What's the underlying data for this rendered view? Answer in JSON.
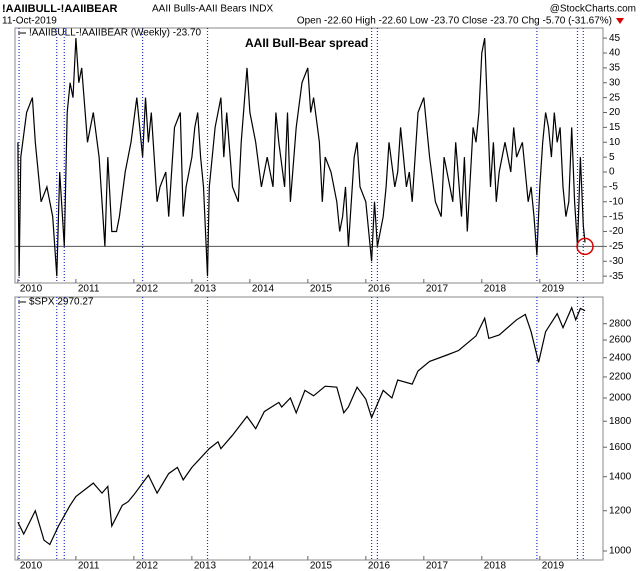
{
  "header": {
    "symbol": "!AAIIBULL-!AAIIBEAR",
    "description": "AAII Bulls-AAII Bears INDX",
    "date": "11-Oct-2019",
    "quote": "Open -22.60  High -22.60  Low -23.70  Close -23.70  Chg -5.70 (-31.67%)",
    "source": "@StockCharts.com"
  },
  "chart_data": [
    {
      "type": "line",
      "annotation": "AAII Bull-Bear spread",
      "x": [
        2010.0,
        2010.02,
        2010.05,
        2010.15,
        2010.25,
        2010.3,
        2010.4,
        2010.5,
        2010.6,
        2010.67,
        2010.72,
        2010.8,
        2010.85,
        2010.9,
        2010.95,
        2011.0,
        2011.05,
        2011.1,
        2011.2,
        2011.3,
        2011.4,
        2011.45,
        2011.5,
        2011.55,
        2011.62,
        2011.7,
        2011.75,
        2011.85,
        2011.95,
        2012.05,
        2012.15,
        2012.2,
        2012.25,
        2012.3,
        2012.4,
        2012.45,
        2012.55,
        2012.6,
        2012.7,
        2012.8,
        2012.85,
        2012.9,
        2013.0,
        2013.05,
        2013.1,
        2013.15,
        2013.2,
        2013.27,
        2013.3,
        2013.4,
        2013.5,
        2013.55,
        2013.6,
        2013.7,
        2013.8,
        2013.85,
        2013.95,
        2014.0,
        2014.1,
        2014.2,
        2014.3,
        2014.4,
        2014.45,
        2014.5,
        2014.6,
        2014.65,
        2014.7,
        2014.8,
        2014.9,
        2015.0,
        2015.05,
        2015.1,
        2015.2,
        2015.25,
        2015.3,
        2015.4,
        2015.5,
        2015.55,
        2015.6,
        2015.65,
        2015.7,
        2015.8,
        2015.85,
        2015.9,
        2016.0,
        2016.05,
        2016.1,
        2016.15,
        2016.2,
        2016.3,
        2016.35,
        2016.4,
        2016.5,
        2016.55,
        2016.6,
        2016.7,
        2016.75,
        2016.8,
        2016.9,
        2017.0,
        2017.05,
        2017.1,
        2017.2,
        2017.3,
        2017.35,
        2017.4,
        2017.5,
        2017.55,
        2017.65,
        2017.7,
        2017.75,
        2017.85,
        2017.9,
        2017.95,
        2018.0,
        2018.05,
        2018.1,
        2018.15,
        2018.2,
        2018.25,
        2018.3,
        2018.4,
        2018.5,
        2018.55,
        2018.6,
        2018.7,
        2018.75,
        2018.8,
        2018.85,
        2018.9,
        2018.95,
        2019.0,
        2019.05,
        2019.1,
        2019.15,
        2019.2,
        2019.25,
        2019.3,
        2019.35,
        2019.4,
        2019.45,
        2019.5,
        2019.55,
        2019.6,
        2019.65,
        2019.7,
        2019.75,
        2019.78
      ],
      "series": [
        {
          "name": "!AAIIBULL-!AAIIBEAR (Weekly) -23.70",
          "color": "#000000",
          "values": [
            10,
            -35,
            5,
            20,
            25,
            10,
            -10,
            -5,
            -15,
            -35,
            0,
            -25,
            20,
            30,
            25,
            45,
            30,
            35,
            10,
            20,
            5,
            -10,
            -25,
            5,
            -20,
            -20,
            -15,
            0,
            10,
            25,
            5,
            25,
            10,
            20,
            -10,
            -5,
            0,
            -15,
            15,
            20,
            -15,
            -5,
            5,
            15,
            20,
            5,
            -5,
            -35,
            -5,
            15,
            25,
            5,
            20,
            -5,
            -10,
            10,
            35,
            20,
            10,
            -5,
            5,
            -5,
            20,
            10,
            -5,
            20,
            -10,
            15,
            30,
            35,
            20,
            25,
            10,
            -10,
            5,
            0,
            -10,
            -20,
            -15,
            -5,
            -25,
            5,
            10,
            -5,
            -10,
            -20,
            -30,
            -10,
            -25,
            -15,
            -5,
            10,
            -5,
            0,
            15,
            -5,
            0,
            -10,
            20,
            25,
            15,
            5,
            -10,
            -15,
            5,
            0,
            -10,
            10,
            -15,
            5,
            -20,
            15,
            10,
            20,
            40,
            45,
            20,
            -5,
            10,
            -10,
            0,
            10,
            0,
            15,
            5,
            10,
            0,
            -10,
            -5,
            -15,
            -28,
            -5,
            10,
            20,
            15,
            5,
            20,
            10,
            15,
            -5,
            -15,
            -10,
            15,
            -10,
            -25,
            5,
            -18,
            -23.7
          ]
        }
      ],
      "xlim": [
        2009.95,
        2020.09
      ],
      "xticks": [
        2010,
        2011,
        2012,
        2013,
        2014,
        2015,
        2016,
        2017,
        2018,
        2019
      ],
      "ylim": [
        -37.3,
        48.4
      ],
      "yticks": [
        45,
        40,
        35,
        30,
        25,
        20,
        15,
        10,
        5,
        0,
        -5,
        -10,
        -15,
        -20,
        -25,
        -30,
        -35
      ],
      "reference_line": -25,
      "reference_color": "#555555",
      "signal_lines": [
        2010.02,
        2010.67,
        2010.8,
        2012.15,
        2013.27,
        2016.1,
        2016.2,
        2018.95,
        2019.65,
        2019.75
      ],
      "signal_color": "#1f2fc8"
    },
    {
      "type": "line",
      "log_scale": true,
      "x": [
        2010.0,
        2010.1,
        2010.3,
        2010.45,
        2010.55,
        2010.7,
        2010.9,
        2011.0,
        2011.3,
        2011.45,
        2011.55,
        2011.62,
        2011.8,
        2011.9,
        2012.0,
        2012.25,
        2012.4,
        2012.6,
        2012.75,
        2012.85,
        2013.0,
        2013.3,
        2013.45,
        2013.5,
        2013.7,
        2013.95,
        2014.1,
        2014.25,
        2014.5,
        2014.55,
        2014.7,
        2014.8,
        2014.95,
        2015.1,
        2015.3,
        2015.5,
        2015.62,
        2015.7,
        2015.85,
        2016.0,
        2016.1,
        2016.3,
        2016.45,
        2016.55,
        2016.8,
        2016.9,
        2017.1,
        2017.4,
        2017.6,
        2017.9,
        2018.05,
        2018.12,
        2018.3,
        2018.6,
        2018.75,
        2018.85,
        2018.98,
        2019.1,
        2019.3,
        2019.4,
        2019.55,
        2019.62,
        2019.7,
        2019.78
      ],
      "series": [
        {
          "name": "$SPX 2970.27",
          "color": "#000000",
          "values": [
            1140,
            1080,
            1200,
            1050,
            1030,
            1120,
            1230,
            1280,
            1360,
            1300,
            1340,
            1120,
            1230,
            1250,
            1290,
            1410,
            1300,
            1420,
            1460,
            1380,
            1460,
            1590,
            1640,
            1590,
            1690,
            1840,
            1740,
            1880,
            1960,
            1920,
            2000,
            1870,
            2070,
            2020,
            2110,
            2100,
            1870,
            1920,
            2100,
            1990,
            1830,
            2070,
            2000,
            2170,
            2130,
            2260,
            2360,
            2430,
            2480,
            2650,
            2870,
            2620,
            2660,
            2850,
            2920,
            2700,
            2350,
            2700,
            2930,
            2750,
            3010,
            2850,
            3000,
            2970
          ]
        }
      ],
      "xlim": [
        2009.95,
        2020.09
      ],
      "xticks": [
        2010,
        2011,
        2012,
        2013,
        2014,
        2015,
        2016,
        2017,
        2018,
        2019
      ],
      "ylim": [
        960,
        3160
      ],
      "yticks": [
        2800,
        2600,
        2400,
        2200,
        2000,
        1800,
        1600,
        1400,
        1200,
        1000
      ],
      "signal_lines": [
        2010.02,
        2010.67,
        2010.8,
        2012.15,
        2013.27,
        2016.1,
        2016.2,
        2018.95,
        2019.65,
        2019.75
      ],
      "signal_color": "#1f2fc8"
    }
  ]
}
